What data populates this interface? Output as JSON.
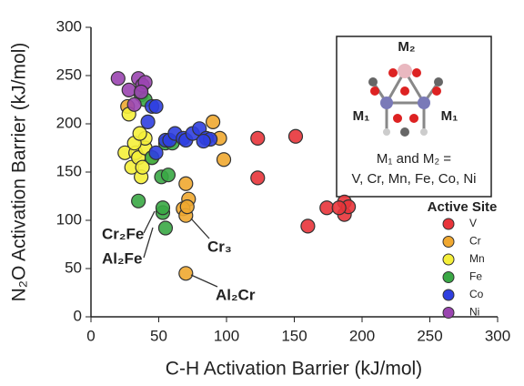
{
  "chart_data": {
    "type": "scatter",
    "xlabel": "C-H Activation Barrier (kJ/mol)",
    "ylabel": "N₂O Activation Barrier (kJ/mol)",
    "xlim": [
      0,
      300
    ],
    "ylim": [
      0,
      300
    ],
    "xticks": [
      0,
      50,
      100,
      150,
      200,
      250,
      300
    ],
    "yticks": [
      0,
      50,
      100,
      150,
      200,
      250,
      300
    ],
    "legend_title": "Active Site",
    "legend_position": "lower right",
    "series": [
      {
        "name": "V",
        "color": "#e8343a",
        "x": [
          123,
          151,
          123,
          160,
          174,
          187,
          187,
          190,
          183
        ],
        "values": [
          185,
          187,
          144,
          94,
          113,
          119,
          106,
          114,
          113
        ]
      },
      {
        "name": "Cr",
        "color": "#f0a830",
        "x": [
          70,
          70,
          72,
          68,
          70,
          71,
          90,
          95,
          98,
          27
        ],
        "values": [
          45,
          138,
          122,
          112,
          105,
          114,
          202,
          185,
          163,
          218
        ]
      },
      {
        "name": "Mn",
        "color": "#f5ef3a",
        "x": [
          25,
          30,
          33,
          35,
          37,
          38,
          40,
          40,
          28,
          45,
          32,
          36
        ],
        "values": [
          170,
          155,
          170,
          165,
          145,
          155,
          175,
          185,
          210,
          165,
          180,
          190
        ]
      },
      {
        "name": "Fe",
        "color": "#3aa845",
        "x": [
          35,
          37,
          40,
          45,
          52,
          53,
          53,
          55,
          55,
          57,
          60
        ],
        "values": [
          120,
          230,
          225,
          165,
          145,
          108,
          113,
          180,
          92,
          147,
          180
        ]
      },
      {
        "name": "Co",
        "color": "#2f3fe0",
        "x": [
          45,
          42,
          48,
          55,
          58,
          62,
          68,
          70,
          75,
          80,
          85,
          88,
          83,
          48
        ],
        "values": [
          218,
          202,
          170,
          183,
          183,
          190,
          185,
          183,
          190,
          195,
          185,
          184,
          182,
          218
        ]
      },
      {
        "name": "Ni",
        "color": "#9a45b0",
        "x": [
          20,
          28,
          35,
          38,
          40,
          37,
          32
        ],
        "values": [
          247,
          235,
          247,
          240,
          243,
          233,
          220
        ]
      }
    ],
    "annotations": [
      "Cr₂Fe",
      "Al₂Fe",
      "Cr₃",
      "Al₂Cr"
    ],
    "inset": {
      "top": "M₂",
      "left": "M₁",
      "right": "M₁",
      "line1": "M₁ and M₂ =",
      "line2": "V, Cr, Mn, Fe, Co, Ni"
    }
  }
}
